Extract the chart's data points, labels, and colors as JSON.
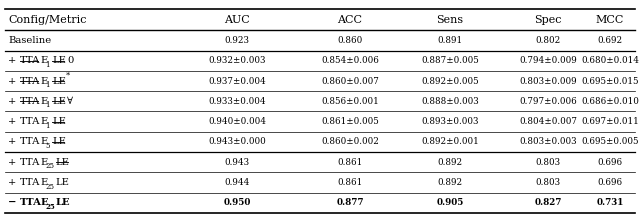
{
  "col_headers": [
    "Config/Metric",
    "AUC",
    "ACC",
    "Sens",
    "Spec",
    "MCC"
  ],
  "rows": [
    {
      "key": "Baseline",
      "values": [
        "0.923",
        "0.860",
        "0.891",
        "0.802",
        "0.692"
      ],
      "bold": false
    },
    {
      "key": "stta_1_sle_0",
      "values": [
        "0.932±0.003",
        "0.854±0.006",
        "0.887±0.005",
        "0.794±0.009",
        "0.680±0.014"
      ],
      "bold": false
    },
    {
      "key": "stta_1_sle_star",
      "values": [
        "0.937±0.004",
        "0.860±0.007",
        "0.892±0.005",
        "0.803±0.009",
        "0.695±0.015"
      ],
      "bold": false
    },
    {
      "key": "stta_1_sle_forall",
      "values": [
        "0.933±0.004",
        "0.856±0.001",
        "0.888±0.003",
        "0.797±0.006",
        "0.686±0.010"
      ],
      "bold": false
    },
    {
      "key": "tta_1_sle",
      "values": [
        "0.940±0.004",
        "0.861±0.005",
        "0.893±0.003",
        "0.804±0.007",
        "0.697±0.011"
      ],
      "bold": false
    },
    {
      "key": "tta_5_sle",
      "values": [
        "0.943±0.000",
        "0.860±0.002",
        "0.892±0.001",
        "0.803±0.003",
        "0.695±0.005"
      ],
      "bold": false
    },
    {
      "key": "tta_25_sle",
      "values": [
        "0.943",
        "0.861",
        "0.892",
        "0.803",
        "0.696"
      ],
      "bold": false
    },
    {
      "key": "tta_25_le",
      "values": [
        "0.944",
        "0.861",
        "0.892",
        "0.803",
        "0.696"
      ],
      "bold": false
    },
    {
      "key": "minus_tta_25_le",
      "values": [
        "0.950",
        "0.877",
        "0.905",
        "0.827",
        "0.731"
      ],
      "bold": true
    }
  ],
  "thick_line_after": [
    0,
    5
  ],
  "fig_width": 6.4,
  "fig_height": 2.18,
  "dpi": 100
}
